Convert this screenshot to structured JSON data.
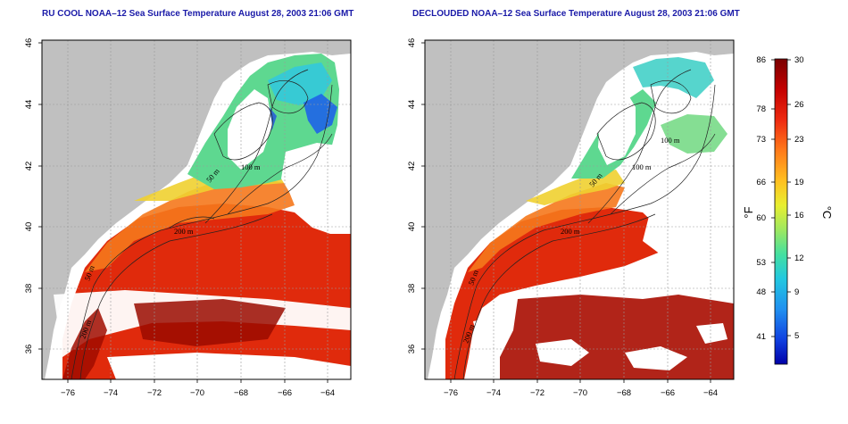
{
  "panels": [
    {
      "title": "RU COOL NOAA–12 Sea Surface Temperature August 28, 2003 21:06 GMT",
      "contour_labels": [
        "100 m",
        "50 m",
        "200 m",
        "50 m",
        "200 m",
        "50 m"
      ]
    },
    {
      "title": "DECLOUDED NOAA–12 Sea Surface Temperature August 28, 2003 21:06 GMT",
      "contour_labels": [
        "100 m",
        "50 m",
        "100 m",
        "200 m",
        "50 m",
        "200 m"
      ]
    }
  ],
  "axes": {
    "lon_ticks": [
      "−76",
      "−74",
      "−72",
      "−70",
      "−68",
      "−66",
      "−64"
    ],
    "lat_ticks": [
      "46",
      "44",
      "42",
      "40",
      "38",
      "36"
    ]
  },
  "colorbar": {
    "fahrenheit_label": "°F",
    "celsius_label": "°C",
    "f_ticks": [
      "86",
      "78",
      "73",
      "66",
      "60",
      "53",
      "48",
      "41"
    ],
    "c_ticks": [
      "30",
      "26",
      "23",
      "19",
      "16",
      "12",
      "9",
      "5"
    ],
    "colors": [
      "#7a0000",
      "#c40000",
      "#ee2a10",
      "#ff7a1a",
      "#ffc020",
      "#e8ef30",
      "#9ee860",
      "#44e0a0",
      "#22c8e0",
      "#2090f0",
      "#1040e0",
      "#0000a8"
    ]
  },
  "colors": {
    "land": "#c0c0c0",
    "cloud": "#ffffff",
    "warm": "#d41a08",
    "hot": "#9a0a00",
    "mid": "#f5641a",
    "cool": "#5ed890",
    "cold": "#1e64e8"
  }
}
